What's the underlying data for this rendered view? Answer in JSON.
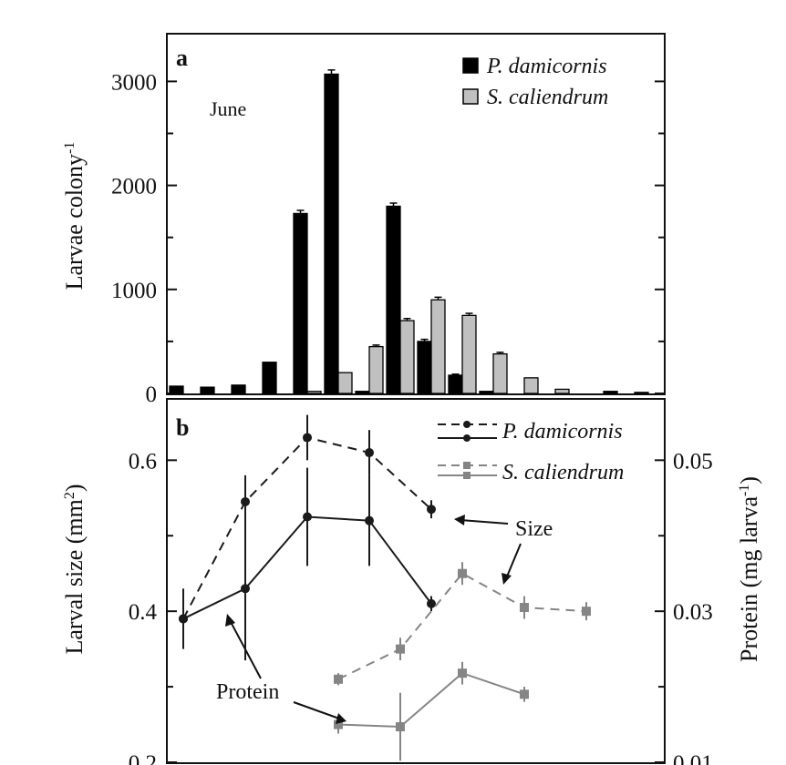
{
  "chart_data": [
    {
      "panel": "a",
      "type": "bar",
      "annotation": "June",
      "ylabel_main": "Larvae colony",
      "ylabel_sup": "-1",
      "ylim": [
        0,
        3450
      ],
      "yticks": [
        0,
        1000,
        2000,
        3000
      ],
      "x_slots": 16,
      "legend_position": "top-right",
      "series": [
        {
          "name": "P. damicornis",
          "color": "#000000",
          "values": [
            70,
            60,
            80,
            300,
            1730,
            3070,
            20,
            1800,
            500,
            175,
            20,
            0,
            0,
            0,
            20,
            10
          ],
          "errors": [
            0,
            0,
            0,
            0,
            30,
            40,
            0,
            30,
            20,
            10,
            0,
            0,
            0,
            0,
            0,
            0
          ]
        },
        {
          "name": "S. caliendrum",
          "color": "#c0c0c0",
          "values": [
            0,
            0,
            0,
            0,
            20,
            200,
            450,
            700,
            900,
            750,
            380,
            150,
            40,
            0,
            0,
            0
          ],
          "errors": [
            0,
            0,
            0,
            0,
            0,
            0,
            15,
            20,
            25,
            20,
            15,
            0,
            0,
            0,
            0,
            0
          ]
        }
      ]
    },
    {
      "panel": "b",
      "type": "line",
      "ylabel_left_main": "Larval size (mm",
      "ylabel_left_sup": "2",
      "ylabel_left_end": ")",
      "ylabel_right_main": "Protein (mg larva",
      "ylabel_right_sup": "-1",
      "ylabel_right_end": ")",
      "ylim_left": [
        0.2,
        0.68
      ],
      "yticks_left": [
        "0.2",
        "0.4",
        "0.6"
      ],
      "ylim_right": [
        0.01,
        0.058
      ],
      "yticks_right": [
        "0.01",
        "0.03",
        "0.05"
      ],
      "legend": [
        "P. damicornis",
        "S. caliendrum"
      ],
      "annotations": {
        "size": "Size",
        "protein": "Protein"
      },
      "series": [
        {
          "name": "P. damicornis size",
          "style": "dashed",
          "color": "#1a1a1a",
          "marker": "circle",
          "x": [
            0,
            2,
            4,
            6,
            8
          ],
          "y": [
            0.39,
            0.545,
            0.63,
            0.61,
            0.535
          ],
          "err": [
            0.02,
            0.035,
            0.03,
            0.03,
            0.012
          ]
        },
        {
          "name": "P. damicornis protein",
          "style": "solid",
          "color": "#1a1a1a",
          "marker": "circle",
          "x": [
            0,
            2,
            4,
            6,
            8
          ],
          "y": [
            0.39,
            0.43,
            0.525,
            0.52,
            0.41
          ],
          "err": [
            0.04,
            0.095,
            0.065,
            0.06,
            0.01
          ]
        },
        {
          "name": "S. caliendrum size",
          "style": "dashed",
          "color": "#858585",
          "marker": "square",
          "x": [
            5,
            7,
            9,
            11,
            13
          ],
          "y": [
            0.31,
            0.35,
            0.45,
            0.405,
            0.4
          ],
          "err": [
            0.008,
            0.015,
            0.015,
            0.015,
            0.012
          ]
        },
        {
          "name": "S. caliendrum protein",
          "style": "solid",
          "color": "#858585",
          "marker": "square",
          "x": [
            5,
            7,
            9,
            11
          ],
          "y": [
            0.25,
            0.247,
            0.318,
            0.29
          ],
          "err": [
            0.012,
            0.045,
            0.015,
            0.01
          ]
        }
      ]
    }
  ]
}
